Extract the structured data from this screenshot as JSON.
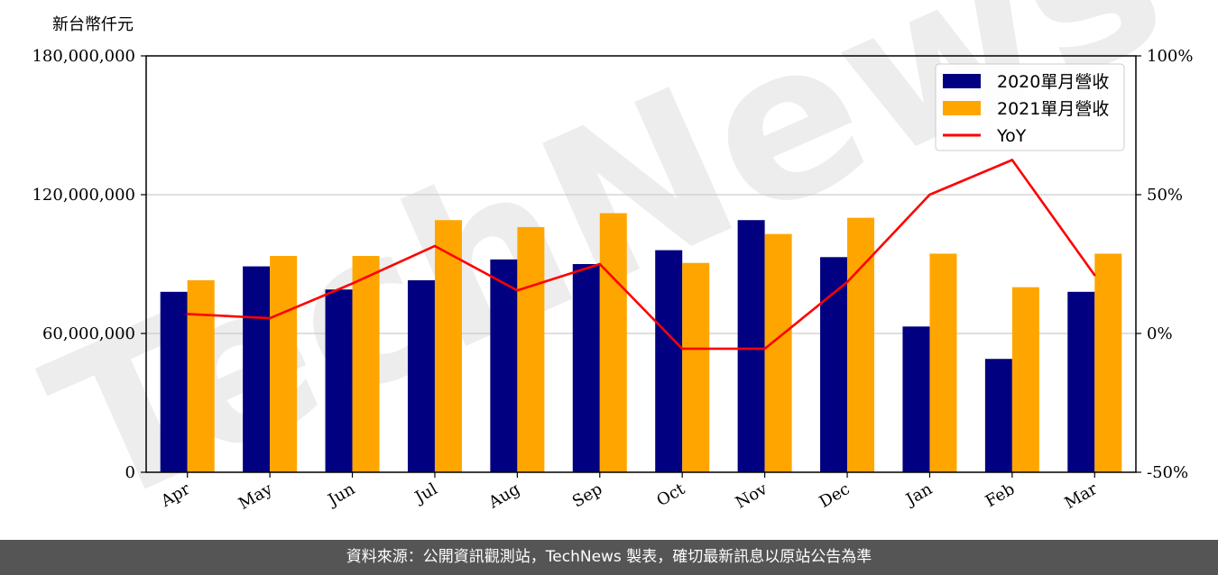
{
  "chart_data": {
    "type": "bar",
    "unit_label": "新台幣仟元",
    "categories": [
      "Apr",
      "May",
      "Jun",
      "Jul",
      "Aug",
      "Sep",
      "Oct",
      "Nov",
      "Dec",
      "Jan",
      "Feb",
      "Mar"
    ],
    "series": [
      {
        "name": "2020單月營收",
        "type": "bar",
        "color": "#000080",
        "values": [
          78000000,
          89000000,
          79000000,
          83000000,
          92000000,
          90000000,
          96000000,
          109000000,
          93000000,
          63000000,
          49000000,
          78000000
        ]
      },
      {
        "name": "2021單月營收",
        "type": "bar",
        "color": "#FFA500",
        "values": [
          83000000,
          93500000,
          93500000,
          109000000,
          106000000,
          112000000,
          90500000,
          103000000,
          110000000,
          94500000,
          80000000,
          94500000
        ]
      }
    ],
    "line_series": {
      "name": "YoY",
      "color": "#FF0000",
      "axis": "right",
      "values": [
        7,
        5.5,
        18,
        31.5,
        15.5,
        25,
        -5.5,
        -5.5,
        18.5,
        50,
        62.5,
        21
      ]
    },
    "ylim": [
      0,
      180000000
    ],
    "yticks": [
      "0",
      "60,000,000",
      "120,000,000",
      "180,000,000"
    ],
    "y2lim": [
      -50,
      100
    ],
    "y2ticks": [
      "-50%",
      "0%",
      "50%",
      "100%"
    ],
    "grid": "horizontal",
    "legend_position": "top-right",
    "watermark": "TechNews"
  },
  "footer": {
    "text": "資料來源：公開資訊觀測站，TechNews 製表，確切最新訊息以原站公告為準"
  }
}
